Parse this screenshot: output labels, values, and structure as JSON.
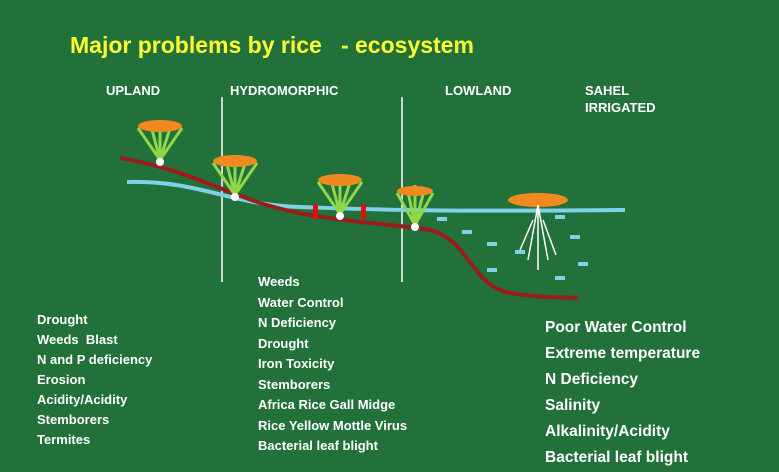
{
  "title": "Major problems by rice   - ecosystem",
  "zones": [
    "UPLAND",
    "HYDROMORPHIC",
    "LOWLAND",
    "SAHEL IRRIGATED"
  ],
  "lists": {
    "upland": [
      "Drought",
      "Weeds  Blast",
      "N and P deficiency",
      "Erosion",
      "Acidity/Acidity",
      "Stemborers",
      "Termites"
    ],
    "hydromorphic": [
      "Weeds",
      "Water Control",
      "N Deficiency",
      "Drought",
      "Iron Toxicity",
      "Stemborers",
      "Africa Rice Gall Midge",
      "Rice Yellow Mottle Virus",
      "Bacterial leaf blight"
    ],
    "irrigated": [
      "Poor Water Control",
      "Extreme temperature",
      "N Deficiency",
      "Salinity",
      "Alkalinity/Acidity",
      "Bacterial leaf blight"
    ]
  }
}
